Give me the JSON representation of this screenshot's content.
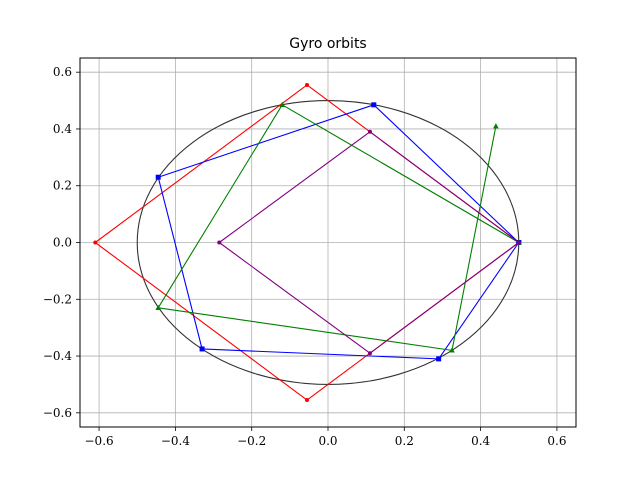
{
  "chart_data": {
    "type": "line",
    "title": "Gyro orbits",
    "xlabel": "",
    "ylabel": "",
    "xlim": [
      -0.65,
      0.65
    ],
    "ylim": [
      -0.65,
      0.65
    ],
    "xticks": [
      -0.6,
      -0.4,
      -0.2,
      0.0,
      0.2,
      0.4,
      0.6
    ],
    "yticks": [
      -0.6,
      -0.4,
      -0.2,
      0.0,
      0.2,
      0.4,
      0.6
    ],
    "xtick_labels": [
      "−0.6",
      "−0.4",
      "−0.2",
      "0.0",
      "0.2",
      "0.4",
      "0.6"
    ],
    "ytick_labels": [
      "−0.6",
      "−0.4",
      "−0.2",
      "0.0",
      "0.2",
      "0.4",
      "0.6"
    ],
    "grid": true,
    "circle": {
      "center": [
        0,
        0
      ],
      "radius": 0.5,
      "color": "#333333"
    },
    "series": [
      {
        "color": "#ff0000",
        "marker": "dot",
        "closed": true,
        "x": [
          0.5,
          -0.055,
          -0.61,
          -0.055
        ],
        "y": [
          0.0,
          0.555,
          0.0,
          -0.555
        ]
      },
      {
        "color": "#0000ff",
        "marker": "square",
        "closed": false,
        "x": [
          0.5,
          0.12,
          -0.445,
          -0.33,
          0.29,
          0.5
        ],
        "y": [
          0.0,
          0.485,
          0.23,
          -0.375,
          -0.41,
          0.0
        ]
      },
      {
        "color": "#008000",
        "marker": "triangle",
        "closed": false,
        "x": [
          0.5,
          -0.12,
          -0.445,
          0.325,
          0.44
        ],
        "y": [
          0.0,
          0.485,
          -0.23,
          -0.38,
          0.41
        ]
      },
      {
        "color": "#800080",
        "marker": "dot",
        "closed": true,
        "x": [
          0.5,
          0.11,
          -0.285,
          0.11
        ],
        "y": [
          0.0,
          0.39,
          0.0,
          -0.39
        ]
      }
    ]
  }
}
